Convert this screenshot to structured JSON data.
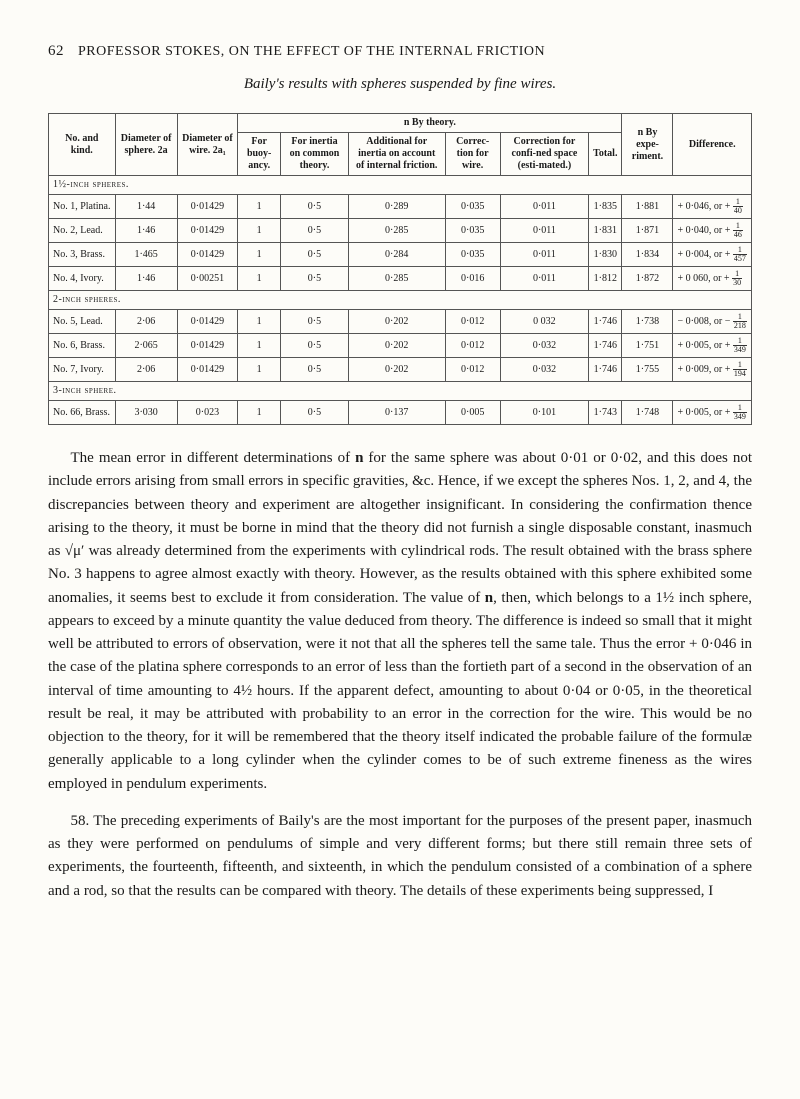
{
  "header": {
    "page_num": "62",
    "running_title": "PROFESSOR STOKES, ON THE EFFECT OF THE INTERNAL FRICTION"
  },
  "subtitle": "Baily's results with spheres suspended by fine wires.",
  "table": {
    "head": {
      "col_no_kind": "No. and kind.",
      "col_diam_sphere": "Diameter of sphere. 2a",
      "col_diam_wire": "Diameter of wire. 2a₁",
      "col_ntheory_span": "n By theory.",
      "col_for_buoy": "For buoy-ancy.",
      "col_for_inertia": "For inertia on common theory.",
      "col_add_friction": "Additional for inertia on account of internal friction.",
      "col_correc_wire": "Correc-tion for wire.",
      "col_corr_confined": "Correction for confi-ned space (esti-mated.)",
      "col_total": "Total.",
      "col_n_exp": "n By expe-riment.",
      "col_diff": "Difference."
    },
    "sections": [
      {
        "label": "1½-inch spheres.",
        "rows": [
          {
            "name": "No. 1, Platina.",
            "d_sphere": "1·44",
            "d_wire": "0·01429",
            "buoy": "1",
            "inertia": "0·5",
            "add": "0·289",
            "cw": "0·035",
            "conf": "0·011",
            "total": "1·835",
            "exp": "1·881",
            "diff": "+ 0·046, or +",
            "frac_n": "1",
            "frac_d": "40"
          },
          {
            "name": "No. 2, Lead.",
            "d_sphere": "1·46",
            "d_wire": "0·01429",
            "buoy": "1",
            "inertia": "0·5",
            "add": "0·285",
            "cw": "0·035",
            "conf": "0·011",
            "total": "1·831",
            "exp": "1·871",
            "diff": "+ 0·040, or +",
            "frac_n": "1",
            "frac_d": "46"
          },
          {
            "name": "No. 3, Brass.",
            "d_sphere": "1·465",
            "d_wire": "0·01429",
            "buoy": "1",
            "inertia": "0·5",
            "add": "0·284",
            "cw": "0·035",
            "conf": "0·011",
            "total": "1·830",
            "exp": "1·834",
            "diff": "+ 0·004, or +",
            "frac_n": "1",
            "frac_d": "457"
          },
          {
            "name": "No. 4, Ivory.",
            "d_sphere": "1·46",
            "d_wire": "0·00251",
            "buoy": "1",
            "inertia": "0·5",
            "add": "0·285",
            "cw": "0·016",
            "conf": "0·011",
            "total": "1·812",
            "exp": "1·872",
            "diff": "+ 0 060, or +",
            "frac_n": "1",
            "frac_d": "30"
          }
        ]
      },
      {
        "label": "2-inch spheres.",
        "rows": [
          {
            "name": "No. 5, Lead.",
            "d_sphere": "2·06",
            "d_wire": "0·01429",
            "buoy": "1",
            "inertia": "0·5",
            "add": "0·202",
            "cw": "0·012",
            "conf": "0 032",
            "total": "1·746",
            "exp": "1·738",
            "diff": "− 0·008, or −",
            "frac_n": "1",
            "frac_d": "218"
          },
          {
            "name": "No. 6, Brass.",
            "d_sphere": "2·065",
            "d_wire": "0·01429",
            "buoy": "1",
            "inertia": "0·5",
            "add": "0·202",
            "cw": "0·012",
            "conf": "0·032",
            "total": "1·746",
            "exp": "1·751",
            "diff": "+ 0·005, or +",
            "frac_n": "1",
            "frac_d": "349"
          },
          {
            "name": "No. 7, Ivory.",
            "d_sphere": "2·06",
            "d_wire": "0·01429",
            "buoy": "1",
            "inertia": "0·5",
            "add": "0·202",
            "cw": "0·012",
            "conf": "0·032",
            "total": "1·746",
            "exp": "1·755",
            "diff": "+ 0·009, or +",
            "frac_n": "1",
            "frac_d": "194"
          }
        ]
      },
      {
        "label": "3-inch sphere.",
        "rows": [
          {
            "name": "No. 66, Brass.",
            "d_sphere": "3·030",
            "d_wire": "0·023",
            "buoy": "1",
            "inertia": "0·5",
            "add": "0·137",
            "cw": "0·005",
            "conf": "0·101",
            "total": "1·743",
            "exp": "1·748",
            "diff": "+ 0·005, or +",
            "frac_n": "1",
            "frac_d": "349"
          }
        ]
      }
    ]
  },
  "para1_a": "The mean error in different determinations of ",
  "para1_n": "n",
  "para1_b": " for the same sphere was about 0·01 or 0·02, and this does not include errors arising from small errors in specific gravities, &c. Hence, if we except the spheres Nos. 1, 2, and 4, the discrepancies between theory and experiment are altogether insignificant. In considering the confirmation thence arising to the theory, it must be borne in mind that the theory did not furnish a single disposable constant, inasmuch as √μ′ was already determined from the experiments with cylindrical rods. The result obtained with the brass sphere No. 3 happens to agree almost exactly with theory. However, as the results obtained with this sphere exhibited some anomalies, it seems best to exclude it from consideration. The value of ",
  "para1_n2": "n",
  "para1_c": ", then, which belongs to a 1½ inch sphere, appears to exceed by a minute quantity the value deduced from theory. The difference is indeed so small that it might well be attributed to errors of observation, were it not that all the spheres tell the same tale. Thus the error + 0·046 in the case of the platina sphere corresponds to an error of less than the fortieth part of a second in the observation of an interval of time amounting to 4½ hours. If the apparent defect, amounting to about 0·04 or 0·05, in the theoretical result be real, it may be attributed with probability to an error in the correction for the wire. This would be no objection to the theory, for it will be remembered that the theory itself indicated the probable failure of the formulæ generally applicable to a long cylinder when the cylinder comes to be of such extreme fineness as the wires employed in pendulum experiments.",
  "para2": "58. The preceding experiments of Baily's are the most important for the purposes of the present paper, inasmuch as they were performed on pendulums of simple and very different forms; but there still remain three sets of experiments, the fourteenth, fifteenth, and sixteenth, in which the pendulum consisted of a combination of a sphere and a rod, so that the results can be compared with theory. The details of these experiments being suppressed, I"
}
